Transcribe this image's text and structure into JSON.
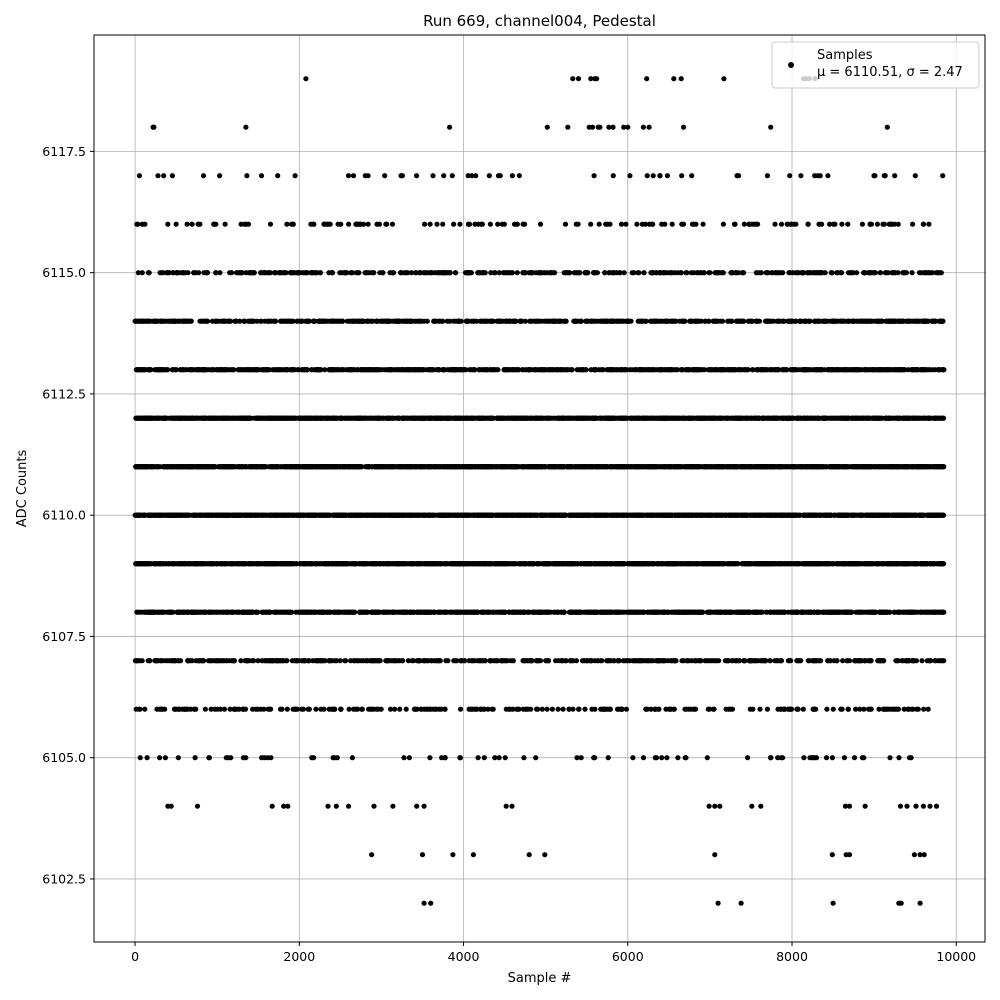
{
  "chart_data": {
    "type": "scatter",
    "title": "Run 669, channel004, Pedestal",
    "xlabel": "Sample #",
    "ylabel": "ADC Counts",
    "xlim": [
      -500,
      10350
    ],
    "ylim": [
      6101.2,
      6119.9
    ],
    "xticks": [
      0,
      2000,
      4000,
      6000,
      8000,
      10000
    ],
    "xtick_labels": [
      "0",
      "2000",
      "4000",
      "6000",
      "8000",
      "10000"
    ],
    "yticks": [
      6102.5,
      6105.0,
      6107.5,
      6110.0,
      6112.5,
      6115.0,
      6117.5
    ],
    "ytick_labels": [
      "6102.5",
      "6105.0",
      "6107.5",
      "6110.0",
      "6112.5",
      "6115.0",
      "6117.5"
    ],
    "grid": true,
    "legend": {
      "placement": "top-right",
      "entries": [
        "Samples",
        "μ = 6110.51, σ = 2.47"
      ]
    },
    "series": [
      {
        "name": "Samples",
        "color": "#000000",
        "sample_range": [
          0,
          9850
        ],
        "level_sample_counts": {
          "6102": 9,
          "6103": 14,
          "6104": 30,
          "6105": 75,
          "6106": 260,
          "6107": 520,
          "6108": 1030,
          "6109": 1620,
          "6110": 1860,
          "6111": 1790,
          "6112": 1370,
          "6113": 900,
          "6114": 720,
          "6115": 440,
          "6116": 140,
          "6117": 55,
          "6118": 24,
          "6119": 16
        },
        "sparse_points": [
          [
            3520,
            6102
          ],
          [
            3600,
            6102
          ],
          [
            7100,
            6102
          ],
          [
            7380,
            6102
          ],
          [
            8500,
            6102
          ],
          [
            9300,
            6102
          ],
          [
            9330,
            6102
          ],
          [
            9560,
            6102
          ],
          [
            2880,
            6103
          ],
          [
            3500,
            6103
          ],
          [
            3870,
            6103
          ],
          [
            4120,
            6103
          ],
          [
            4800,
            6103
          ],
          [
            4990,
            6103
          ],
          [
            7060,
            6103
          ],
          [
            8490,
            6103
          ],
          [
            8660,
            6103
          ],
          [
            8700,
            6103
          ],
          [
            9490,
            6103
          ],
          [
            9560,
            6103
          ],
          [
            9610,
            6103
          ],
          [
            400,
            6104
          ],
          [
            440,
            6104
          ],
          [
            760,
            6104
          ],
          [
            1670,
            6104
          ],
          [
            1810,
            6104
          ],
          [
            1860,
            6104
          ],
          [
            2350,
            6104
          ],
          [
            2450,
            6104
          ],
          [
            2600,
            6104
          ],
          [
            2910,
            6104
          ],
          [
            3140,
            6104
          ],
          [
            3430,
            6104
          ],
          [
            3520,
            6104
          ],
          [
            4520,
            6104
          ],
          [
            4590,
            6104
          ],
          [
            6990,
            6104
          ],
          [
            7060,
            6104
          ],
          [
            7120,
            6104
          ],
          [
            7510,
            6104
          ],
          [
            7620,
            6104
          ],
          [
            8650,
            6104
          ],
          [
            8700,
            6104
          ],
          [
            8890,
            6104
          ],
          [
            9320,
            6104
          ],
          [
            9400,
            6104
          ],
          [
            9510,
            6104
          ],
          [
            9600,
            6104
          ],
          [
            9680,
            6104
          ],
          [
            9760,
            6104
          ],
          [
            5330,
            6119
          ],
          [
            5400,
            6119
          ],
          [
            5550,
            6119
          ],
          [
            5600,
            6119
          ],
          [
            2080,
            6119
          ],
          [
            5620,
            6119
          ],
          [
            6230,
            6119
          ],
          [
            6560,
            6119
          ],
          [
            6650,
            6119
          ],
          [
            7170,
            6119
          ],
          [
            8140,
            6119
          ],
          [
            8170,
            6119
          ],
          [
            8210,
            6119
          ],
          [
            8280,
            6119
          ],
          [
            220,
            6118
          ],
          [
            230,
            6118
          ],
          [
            1350,
            6118
          ],
          [
            3830,
            6118
          ],
          [
            5020,
            6118
          ],
          [
            5270,
            6118
          ],
          [
            5530,
            6118
          ],
          [
            5570,
            6118
          ],
          [
            5640,
            6118
          ],
          [
            5660,
            6118
          ],
          [
            5770,
            6118
          ],
          [
            5820,
            6118
          ],
          [
            5950,
            6118
          ],
          [
            6000,
            6118
          ],
          [
            6190,
            6118
          ],
          [
            6260,
            6118
          ],
          [
            6680,
            6118
          ],
          [
            7740,
            6118
          ],
          [
            9160,
            6118
          ]
        ]
      }
    ]
  }
}
